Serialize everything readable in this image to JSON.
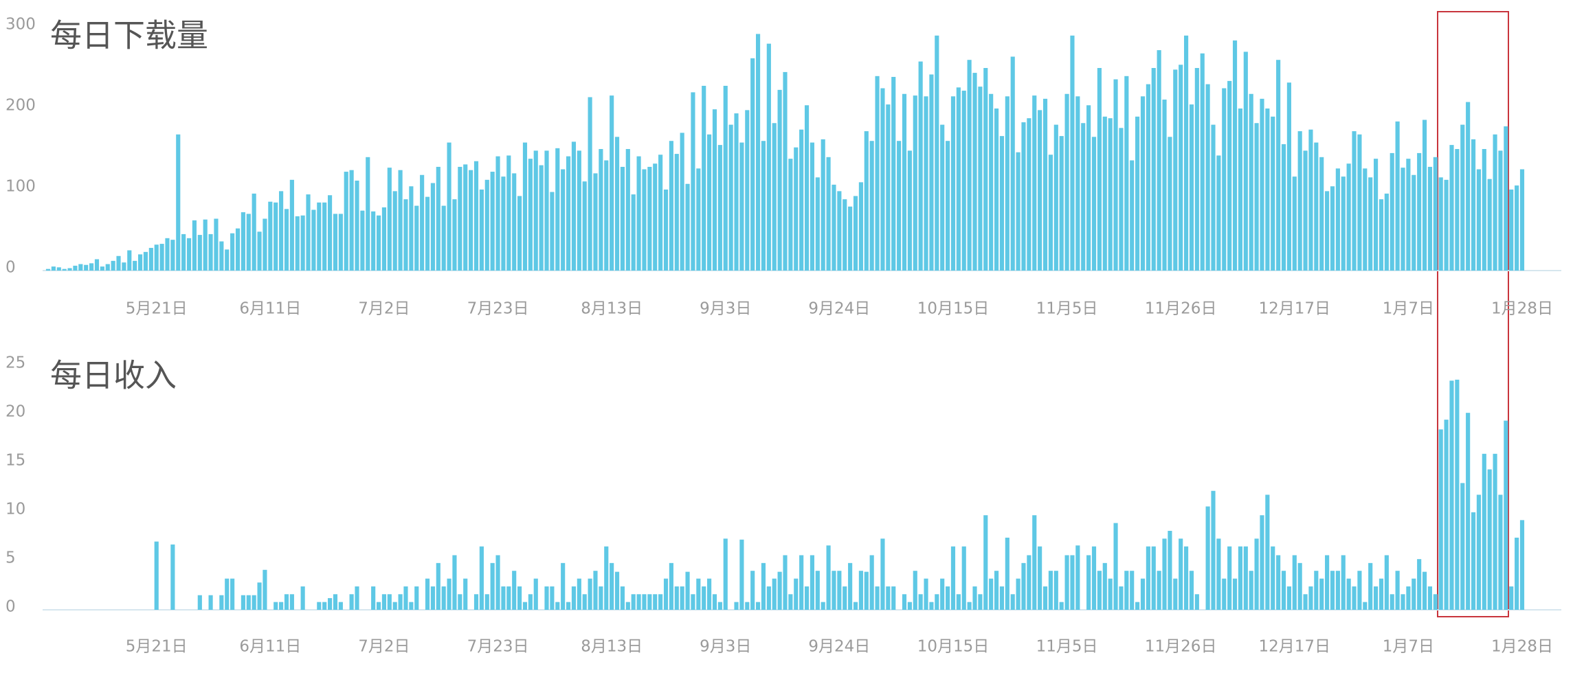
{
  "chart_data": [
    {
      "type": "bar",
      "title": "每日下载量",
      "color": "#5ec8e5",
      "ylim": [
        0,
        300
      ],
      "yticks": [
        0,
        100,
        200,
        300
      ],
      "categories": [
        null,
        null,
        null,
        null,
        null,
        null,
        null,
        null,
        null,
        null,
        null,
        null,
        null,
        null,
        null,
        null,
        null,
        null,
        null,
        null,
        "5月21日",
        null,
        null,
        null,
        null,
        null,
        null,
        null,
        null,
        null,
        null,
        null,
        null,
        null,
        null,
        null,
        null,
        null,
        null,
        null,
        null,
        "6月11日",
        null,
        null,
        null,
        null,
        null,
        null,
        null,
        null,
        null,
        null,
        null,
        null,
        null,
        null,
        null,
        null,
        null,
        null,
        null,
        null,
        "7月2日",
        null,
        null,
        null,
        null,
        null,
        null,
        null,
        null,
        null,
        null,
        null,
        null,
        null,
        null,
        null,
        null,
        null,
        null,
        null,
        null,
        "7月23日",
        null,
        null,
        null,
        null,
        null,
        null,
        null,
        null,
        null,
        null,
        null,
        null,
        null,
        null,
        null,
        null,
        null,
        null,
        null,
        null,
        "8月13日",
        null,
        null,
        null,
        null,
        null,
        null,
        null,
        null,
        null,
        null,
        null,
        null,
        null,
        null,
        null,
        null,
        null,
        null,
        null,
        null,
        "9月3日",
        null,
        null,
        null,
        null,
        null,
        null,
        null,
        null,
        null,
        null,
        null,
        null,
        null,
        null,
        null,
        null,
        null,
        null,
        null,
        null,
        "9月24日",
        null,
        null,
        null,
        null,
        null,
        null,
        null,
        null,
        null,
        null,
        null,
        null,
        null,
        null,
        null,
        null,
        null,
        null,
        null,
        null,
        "10月15日",
        null,
        null,
        null,
        null,
        null,
        null,
        null,
        null,
        null,
        null,
        null,
        null,
        null,
        null,
        null,
        null,
        null,
        null,
        null,
        null,
        "11月5日",
        null,
        null,
        null,
        null,
        null,
        null,
        null,
        null,
        null,
        null,
        null,
        null,
        null,
        null,
        null,
        null,
        null,
        null,
        null,
        null,
        "11月26日",
        null,
        null,
        null,
        null,
        null,
        null,
        null,
        null,
        null,
        null,
        null,
        null,
        null,
        null,
        null,
        null,
        null,
        null,
        null,
        null,
        "12月17日",
        null,
        null,
        null,
        null,
        null,
        null,
        null,
        null,
        null,
        null,
        null,
        null,
        null,
        null,
        null,
        null,
        null,
        null,
        null,
        null,
        "1月7日",
        null,
        null,
        null,
        null,
        null,
        null,
        null,
        null,
        null,
        null,
        null,
        null,
        null,
        null,
        null,
        null,
        null,
        null,
        null,
        null,
        "1月28日"
      ],
      "values": [
        2,
        5,
        4,
        2,
        3,
        6,
        8,
        7,
        9,
        14,
        5,
        8,
        12,
        18,
        10,
        25,
        12,
        20,
        23,
        28,
        32,
        33,
        40,
        38,
        168,
        45,
        40,
        62,
        44,
        63,
        45,
        64,
        36,
        26,
        46,
        52,
        72,
        70,
        95,
        48,
        64,
        85,
        84,
        98,
        76,
        112,
        67,
        68,
        94,
        75,
        84,
        84,
        93,
        70,
        70,
        122,
        124,
        111,
        74,
        140,
        73,
        68,
        78,
        127,
        98,
        124,
        88,
        104,
        80,
        118,
        91,
        108,
        128,
        80,
        158,
        88,
        128,
        131,
        124,
        135,
        100,
        112,
        122,
        141,
        116,
        142,
        120,
        92,
        158,
        138,
        148,
        130,
        148,
        97,
        151,
        125,
        141,
        159,
        148,
        110,
        214,
        120,
        150,
        136,
        216,
        165,
        128,
        150,
        94,
        141,
        125,
        128,
        132,
        143,
        100,
        160,
        144,
        170,
        107,
        220,
        126,
        228,
        168,
        199,
        155,
        228,
        180,
        194,
        158,
        198,
        262,
        292,
        160,
        280,
        182,
        223,
        245,
        138,
        152,
        174,
        204,
        158,
        115,
        162,
        140,
        106,
        98,
        88,
        79,
        92,
        109,
        172,
        160,
        240,
        225,
        205,
        239,
        160,
        218,
        148,
        216,
        258,
        215,
        242,
        290,
        180,
        160,
        215,
        226,
        222,
        260,
        244,
        227,
        250,
        218,
        200,
        166,
        215,
        264,
        146,
        183,
        188,
        216,
        198,
        212,
        143,
        180,
        166,
        218,
        290,
        215,
        182,
        204,
        165,
        250,
        190,
        188,
        236,
        176,
        240,
        136,
        190,
        215,
        230,
        250,
        272,
        211,
        165,
        248,
        254,
        290,
        205,
        250,
        268,
        230,
        180,
        142,
        225,
        234,
        284,
        200,
        270,
        218,
        182,
        212,
        200,
        190,
        260,
        156,
        232,
        116,
        172,
        148,
        174,
        158,
        140,
        98,
        104,
        126,
        116,
        132,
        172,
        168,
        126,
        115,
        138,
        88,
        95,
        145,
        184,
        127,
        138,
        118,
        145,
        186,
        128,
        140,
        115,
        112,
        155,
        150,
        180,
        208,
        162,
        125,
        150,
        113,
        168,
        148,
        178,
        100,
        105,
        125
      ]
    },
    {
      "type": "bar",
      "title": "每日收入",
      "color": "#5ec8e5",
      "ylim": [
        0,
        25
      ],
      "yticks": [
        0,
        5,
        10,
        15,
        20,
        25
      ],
      "categories": [
        null,
        null,
        null,
        null,
        null,
        null,
        null,
        null,
        null,
        null,
        null,
        null,
        null,
        null,
        null,
        null,
        null,
        null,
        null,
        null,
        "5月21日",
        null,
        null,
        null,
        null,
        null,
        null,
        null,
        null,
        null,
        null,
        null,
        null,
        null,
        null,
        null,
        null,
        null,
        null,
        null,
        null,
        "6月11日",
        null,
        null,
        null,
        null,
        null,
        null,
        null,
        null,
        null,
        null,
        null,
        null,
        null,
        null,
        null,
        null,
        null,
        null,
        null,
        null,
        "7月2日",
        null,
        null,
        null,
        null,
        null,
        null,
        null,
        null,
        null,
        null,
        null,
        null,
        null,
        null,
        null,
        null,
        null,
        null,
        null,
        null,
        "7月23日",
        null,
        null,
        null,
        null,
        null,
        null,
        null,
        null,
        null,
        null,
        null,
        null,
        null,
        null,
        null,
        null,
        null,
        null,
        null,
        null,
        "8月13日",
        null,
        null,
        null,
        null,
        null,
        null,
        null,
        null,
        null,
        null,
        null,
        null,
        null,
        null,
        null,
        null,
        null,
        null,
        null,
        null,
        "9月3日",
        null,
        null,
        null,
        null,
        null,
        null,
        null,
        null,
        null,
        null,
        null,
        null,
        null,
        null,
        null,
        null,
        null,
        null,
        null,
        null,
        "9月24日",
        null,
        null,
        null,
        null,
        null,
        null,
        null,
        null,
        null,
        null,
        null,
        null,
        null,
        null,
        null,
        null,
        null,
        null,
        null,
        null,
        "10月15日",
        null,
        null,
        null,
        null,
        null,
        null,
        null,
        null,
        null,
        null,
        null,
        null,
        null,
        null,
        null,
        null,
        null,
        null,
        null,
        null,
        "11月5日",
        null,
        null,
        null,
        null,
        null,
        null,
        null,
        null,
        null,
        null,
        null,
        null,
        null,
        null,
        null,
        null,
        null,
        null,
        null,
        null,
        "11月26日",
        null,
        null,
        null,
        null,
        null,
        null,
        null,
        null,
        null,
        null,
        null,
        null,
        null,
        null,
        null,
        null,
        null,
        null,
        null,
        null,
        "12月17日",
        null,
        null,
        null,
        null,
        null,
        null,
        null,
        null,
        null,
        null,
        null,
        null,
        null,
        null,
        null,
        null,
        null,
        null,
        null,
        null,
        "1月7日",
        null,
        null,
        null,
        null,
        null,
        null,
        null,
        null,
        null,
        null,
        null,
        null,
        null,
        null,
        null,
        null,
        null,
        null,
        null,
        null,
        "1月28日"
      ],
      "values": [
        0,
        0,
        0,
        0,
        0,
        0,
        0,
        0,
        0,
        0,
        0,
        0,
        0,
        0,
        0,
        0,
        0,
        0,
        0,
        0,
        7,
        0,
        0,
        6.7,
        0,
        0,
        0,
        0,
        1.5,
        0,
        1.5,
        0,
        1.5,
        3.2,
        3.2,
        0,
        1.5,
        1.5,
        1.5,
        2.8,
        4.1,
        0,
        0.8,
        0.8,
        1.6,
        1.6,
        0,
        2.4,
        0,
        0,
        0.8,
        0.8,
        1.2,
        1.6,
        0.8,
        0,
        1.6,
        2.4,
        0,
        0,
        2.4,
        0.8,
        1.6,
        1.6,
        0.8,
        1.6,
        2.4,
        0.8,
        2.4,
        0,
        3.2,
        2.4,
        4.8,
        2.4,
        3.2,
        5.6,
        1.6,
        3.2,
        0,
        1.6,
        6.5,
        1.6,
        4.8,
        5.6,
        2.4,
        2.4,
        4.0,
        2.4,
        0.8,
        1.6,
        3.2,
        0,
        2.4,
        2.4,
        0.8,
        4.8,
        0.8,
        2.4,
        3.2,
        1.6,
        3.2,
        4.0,
        2.4,
        6.5,
        4.8,
        3.9,
        2.4,
        0.8,
        1.6,
        1.6,
        1.6,
        1.6,
        1.6,
        1.6,
        3.2,
        4.8,
        2.4,
        2.4,
        3.9,
        1.6,
        3.2,
        2.4,
        3.2,
        1.6,
        0.8,
        7.3,
        0,
        0.8,
        7.2,
        0.8,
        4.0,
        0.8,
        4.8,
        2.4,
        3.2,
        3.9,
        5.6,
        1.6,
        3.2,
        5.6,
        2.4,
        5.6,
        4.0,
        0.8,
        6.6,
        4.0,
        4.0,
        2.4,
        4.8,
        0.8,
        4.0,
        3.9,
        5.6,
        2.4,
        7.3,
        2.4,
        2.4,
        0,
        1.6,
        0.8,
        4.0,
        1.6,
        3.2,
        0.8,
        1.6,
        3.2,
        2.4,
        6.5,
        1.6,
        6.5,
        0.8,
        2.4,
        1.6,
        9.7,
        3.2,
        4.0,
        2.4,
        7.4,
        1.6,
        3.2,
        4.8,
        5.6,
        9.7,
        6.5,
        2.4,
        4.0,
        4.0,
        0.8,
        5.6,
        5.6,
        6.6,
        0,
        5.6,
        6.5,
        4.0,
        4.8,
        3.2,
        8.9,
        2.4,
        4.0,
        4.0,
        0.8,
        3.2,
        6.5,
        6.5,
        4.0,
        7.3,
        8.1,
        3.2,
        7.3,
        6.5,
        4.0,
        1.6,
        0,
        10.6,
        12.2,
        7.3,
        3.2,
        6.5,
        3.2,
        6.5,
        6.5,
        4.0,
        7.3,
        9.7,
        11.8,
        6.5,
        5.6,
        4.0,
        2.4,
        5.6,
        4.8,
        1.6,
        2.4,
        4.0,
        3.2,
        5.6,
        4.0,
        4.0,
        5.6,
        3.2,
        2.4,
        4.0,
        0.8,
        4.8,
        2.4,
        3.2,
        5.6,
        1.6,
        4.0,
        1.6,
        2.4,
        3.2,
        5.2,
        3.9,
        2.4,
        1.6,
        18.5,
        19.5,
        23.5,
        23.6,
        13,
        20.2,
        10,
        11.8,
        16,
        14.4,
        16,
        11.8,
        19.4,
        2.4,
        7.4,
        9.2
      ]
    }
  ]
}
